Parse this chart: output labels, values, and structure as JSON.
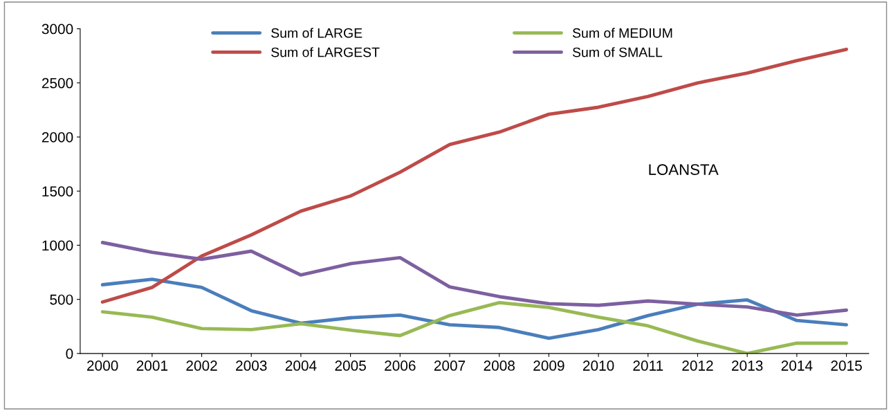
{
  "chart_data": {
    "type": "line",
    "categories": [
      "2000",
      "2001",
      "2002",
      "2003",
      "2004",
      "2005",
      "2006",
      "2007",
      "2008",
      "2009",
      "2010",
      "2011",
      "2012",
      "2013",
      "2014",
      "2015"
    ],
    "series": [
      {
        "name": "Sum of LARGE",
        "color": "#4a7ebb",
        "values": [
          635,
          685,
          610,
          395,
          280,
          330,
          355,
          265,
          240,
          140,
          220,
          350,
          455,
          495,
          305,
          265
        ]
      },
      {
        "name": "Sum of LARGEST",
        "color": "#be4b48",
        "values": [
          475,
          610,
          900,
          1095,
          1315,
          1455,
          1675,
          1930,
          2045,
          2210,
          2275,
          2375,
          2500,
          2590,
          2705,
          2810
        ]
      },
      {
        "name": "Sum of MEDIUM",
        "color": "#98b954",
        "values": [
          385,
          335,
          230,
          220,
          275,
          215,
          165,
          350,
          470,
          425,
          335,
          255,
          115,
          0,
          95,
          95
        ]
      },
      {
        "name": "Sum of SMALL",
        "color": "#7d60a0",
        "values": [
          1025,
          935,
          870,
          945,
          725,
          830,
          885,
          615,
          525,
          460,
          445,
          485,
          455,
          430,
          355,
          400
        ]
      }
    ],
    "ylim": [
      0,
      3000
    ],
    "yticks": [
      0,
      500,
      1000,
      1500,
      2000,
      2500,
      3000
    ],
    "annotations": [
      "LOANSTA"
    ],
    "legend": "top",
    "grid": false,
    "marker": "none",
    "line_style": "solid"
  }
}
